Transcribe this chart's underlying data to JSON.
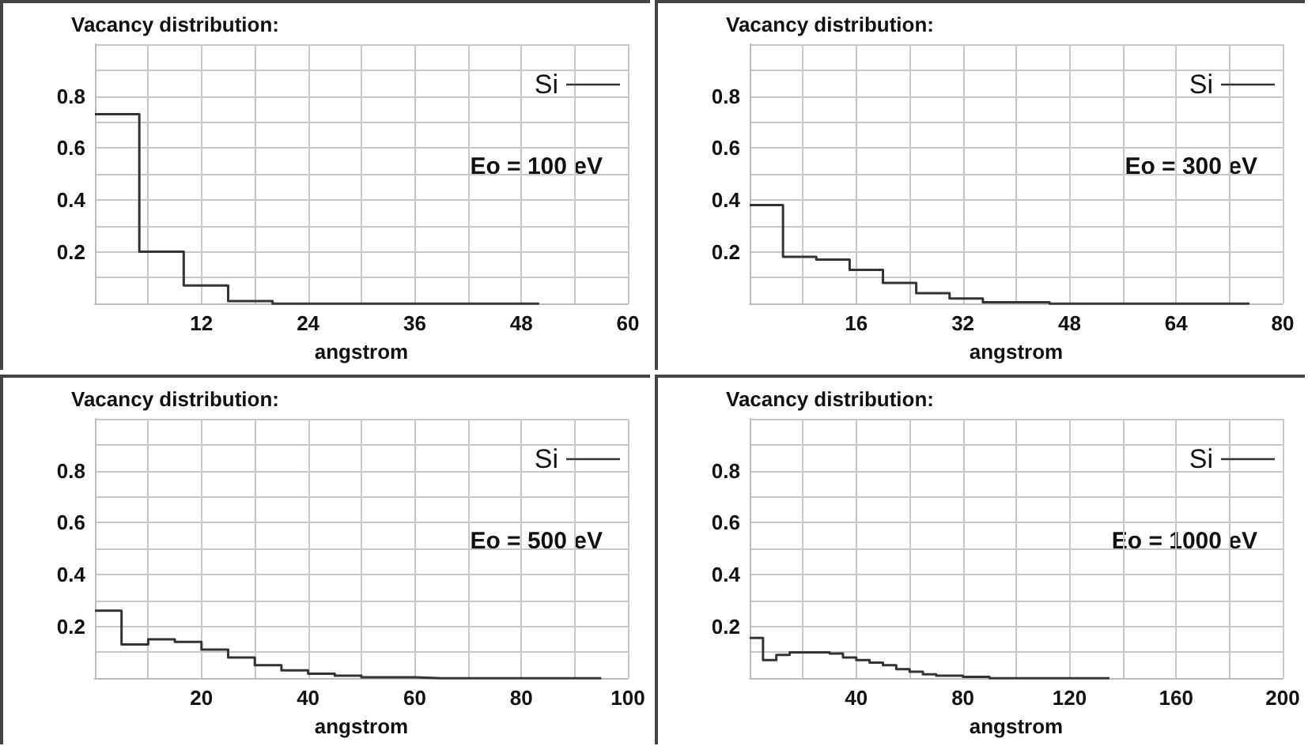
{
  "chart_data": [
    {
      "type": "step",
      "title": "Vacancy distribution:",
      "xlabel": "angstrom",
      "annotations": [
        "Eo = 100 eV"
      ],
      "legend": "top right",
      "grid": true,
      "xlim": [
        0,
        60
      ],
      "ylim": [
        0,
        1
      ],
      "xticks": [
        {
          "value": 0,
          "label": null
        },
        {
          "value": 6,
          "label": null
        },
        12,
        {
          "value": 18,
          "label": null
        },
        24,
        {
          "value": 30,
          "label": null
        },
        36,
        {
          "value": 42,
          "label": null
        },
        48,
        {
          "value": 54,
          "label": null
        },
        60
      ],
      "yticks": [
        {
          "value": 0,
          "label": null
        },
        {
          "value": 0.1,
          "label": null
        },
        0.2,
        {
          "value": 0.3,
          "label": null
        },
        0.4,
        {
          "value": 0.5,
          "label": null
        },
        0.6,
        {
          "value": 0.7,
          "label": null
        },
        0.8,
        {
          "value": 0.9,
          "label": null
        },
        {
          "value": 1,
          "label": null
        }
      ],
      "x": [
        0,
        5,
        10,
        15,
        20,
        25,
        30,
        35,
        40,
        45,
        50
      ],
      "series": [
        {
          "name": "Si",
          "color": "#333333",
          "values": [
            0.73,
            0.2,
            0.07,
            0.01,
            0,
            0,
            0,
            0,
            0,
            0,
            0
          ]
        }
      ]
    },
    {
      "type": "step",
      "title": "Vacancy distribution:",
      "xlabel": "angstrom",
      "annotations": [
        "Eo = 300 eV"
      ],
      "legend": "top right",
      "grid": true,
      "xlim": [
        0,
        80
      ],
      "ylim": [
        0,
        1
      ],
      "xticks": [
        {
          "value": 0,
          "label": null
        },
        {
          "value": 8,
          "label": null
        },
        16,
        {
          "value": 24,
          "label": null
        },
        32,
        {
          "value": 40,
          "label": null
        },
        48,
        {
          "value": 56,
          "label": null
        },
        64,
        {
          "value": 72,
          "label": null
        },
        80
      ],
      "yticks": [
        {
          "value": 0,
          "label": null
        },
        {
          "value": 0.1,
          "label": null
        },
        0.2,
        {
          "value": 0.3,
          "label": null
        },
        0.4,
        {
          "value": 0.5,
          "label": null
        },
        0.6,
        {
          "value": 0.7,
          "label": null
        },
        0.8,
        {
          "value": 0.9,
          "label": null
        },
        {
          "value": 1,
          "label": null
        }
      ],
      "x": [
        0,
        5,
        10,
        15,
        20,
        25,
        30,
        35,
        40,
        45,
        50,
        55,
        60,
        65,
        70,
        75
      ],
      "series": [
        {
          "name": "Si",
          "color": "#333333",
          "values": [
            0.38,
            0.18,
            0.17,
            0.13,
            0.08,
            0.04,
            0.02,
            0.005,
            0.005,
            0,
            0,
            0,
            0,
            0,
            0,
            0
          ]
        }
      ]
    },
    {
      "type": "step",
      "title": "Vacancy distribution:",
      "xlabel": "angstrom",
      "annotations": [
        "Eo = 500 eV"
      ],
      "legend": "top right",
      "grid": true,
      "xlim": [
        0,
        100
      ],
      "ylim": [
        0,
        1
      ],
      "xticks": [
        {
          "value": 0,
          "label": null
        },
        {
          "value": 10,
          "label": null
        },
        20,
        {
          "value": 30,
          "label": null
        },
        40,
        {
          "value": 50,
          "label": null
        },
        60,
        {
          "value": 70,
          "label": null
        },
        80,
        {
          "value": 90,
          "label": null
        },
        100
      ],
      "yticks": [
        {
          "value": 0,
          "label": null
        },
        {
          "value": 0.1,
          "label": null
        },
        0.2,
        {
          "value": 0.3,
          "label": null
        },
        0.4,
        {
          "value": 0.5,
          "label": null
        },
        0.6,
        {
          "value": 0.7,
          "label": null
        },
        0.8,
        {
          "value": 0.9,
          "label": null
        },
        {
          "value": 1,
          "label": null
        }
      ],
      "x": [
        0,
        5,
        10,
        15,
        20,
        25,
        30,
        35,
        40,
        45,
        50,
        55,
        60,
        65,
        70,
        75,
        80,
        85,
        90,
        95
      ],
      "series": [
        {
          "name": "Si",
          "color": "#333333",
          "values": [
            0.26,
            0.13,
            0.15,
            0.14,
            0.11,
            0.08,
            0.05,
            0.03,
            0.017,
            0.01,
            0.004,
            0.004,
            0,
            0,
            0,
            0,
            0,
            0,
            0,
            0
          ]
        }
      ]
    },
    {
      "type": "step",
      "title": "Vacancy distribution:",
      "xlabel": "angstrom",
      "annotations": [
        "Eo = 1000 eV"
      ],
      "legend": "top right",
      "grid": true,
      "xlim": [
        0,
        200
      ],
      "ylim": [
        0,
        1
      ],
      "xticks": [
        {
          "value": 0,
          "label": null
        },
        {
          "value": 20,
          "label": null
        },
        40,
        {
          "value": 60,
          "label": null
        },
        80,
        {
          "value": 100,
          "label": null
        },
        120,
        {
          "value": 140,
          "label": null
        },
        160,
        {
          "value": 180,
          "label": null
        },
        200
      ],
      "yticks": [
        {
          "value": 0,
          "label": null
        },
        {
          "value": 0.1,
          "label": null
        },
        0.2,
        {
          "value": 0.3,
          "label": null
        },
        0.4,
        {
          "value": 0.5,
          "label": null
        },
        0.6,
        {
          "value": 0.7,
          "label": null
        },
        0.8,
        {
          "value": 0.9,
          "label": null
        },
        {
          "value": 1,
          "label": null
        }
      ],
      "x": [
        0,
        5,
        10,
        15,
        20,
        25,
        30,
        35,
        40,
        45,
        50,
        55,
        60,
        65,
        70,
        75,
        80,
        85,
        90,
        95,
        100,
        105,
        110,
        115,
        120,
        125,
        130,
        135
      ],
      "series": [
        {
          "name": "Si",
          "color": "#333333",
          "values": [
            0.155,
            0.07,
            0.09,
            0.1,
            0.1,
            0.1,
            0.095,
            0.08,
            0.07,
            0.06,
            0.05,
            0.035,
            0.025,
            0.015,
            0.01,
            0.01,
            0.005,
            0.005,
            0,
            0,
            0,
            0,
            0,
            0,
            0,
            0,
            0,
            0
          ]
        }
      ]
    }
  ]
}
